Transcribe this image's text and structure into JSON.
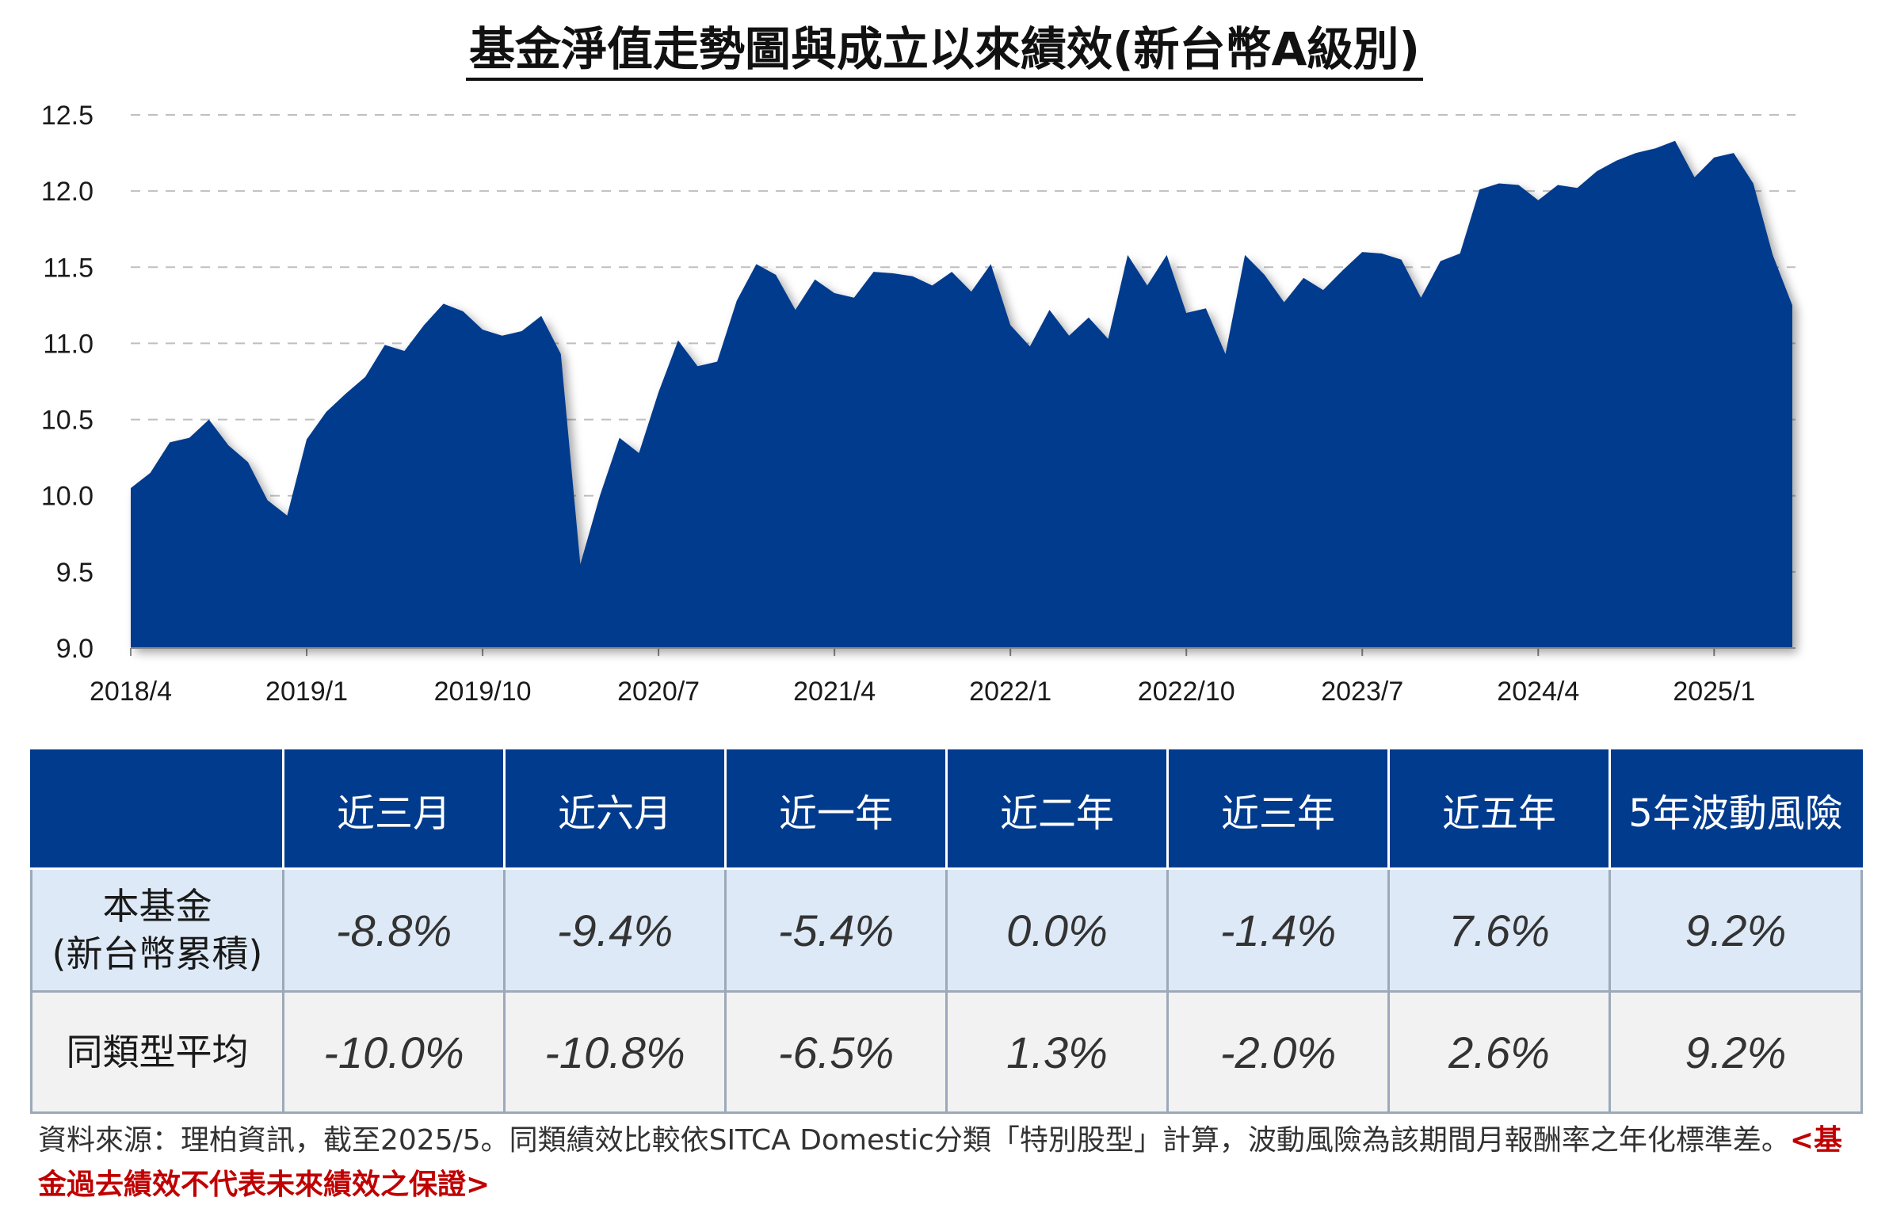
{
  "title": "基金淨值走勢圖與成立以來績效(新台幣A級別)",
  "colors": {
    "area": "#003b8e",
    "header": "#003b8e",
    "fund_row": "#dde9f6",
    "avg_row": "#f2f2f2",
    "warning": "#c00000"
  },
  "chart_data": {
    "type": "area",
    "title": "基金淨值走勢圖與成立以來績效(新台幣A級別)",
    "x_ticks": [
      "2018/4",
      "2019/1",
      "2019/10",
      "2020/7",
      "2021/4",
      "2022/1",
      "2022/10",
      "2023/7",
      "2024/4",
      "2025/1"
    ],
    "x_range": [
      "2018/4",
      "2025/5"
    ],
    "y_ticks": [
      "12.5",
      "12.0",
      "11.5",
      "11.0",
      "10.5",
      "10.0",
      "9.5",
      "9.0"
    ],
    "ylim": [
      9.0,
      12.5
    ],
    "grid": "horizontal dashed",
    "series": [
      {
        "values": [
          {
            "x": "2018-04",
            "y": 10.05
          },
          {
            "x": "2018-05",
            "y": 10.15
          },
          {
            "x": "2018-06",
            "y": 10.35
          },
          {
            "x": "2018-07",
            "y": 10.38
          },
          {
            "x": "2018-08",
            "y": 10.5
          },
          {
            "x": "2018-09",
            "y": 10.33
          },
          {
            "x": "2018-10",
            "y": 10.22
          },
          {
            "x": "2018-11",
            "y": 9.97
          },
          {
            "x": "2018-12",
            "y": 9.87
          },
          {
            "x": "2019-01",
            "y": 10.37
          },
          {
            "x": "2019-02",
            "y": 10.55
          },
          {
            "x": "2019-03",
            "y": 10.67
          },
          {
            "x": "2019-04",
            "y": 10.78
          },
          {
            "x": "2019-05",
            "y": 10.99
          },
          {
            "x": "2019-06",
            "y": 10.95
          },
          {
            "x": "2019-07",
            "y": 11.12
          },
          {
            "x": "2019-08",
            "y": 11.26
          },
          {
            "x": "2019-09",
            "y": 11.21
          },
          {
            "x": "2019-10",
            "y": 11.09
          },
          {
            "x": "2019-11",
            "y": 11.05
          },
          {
            "x": "2019-12",
            "y": 11.08
          },
          {
            "x": "2020-01",
            "y": 11.18
          },
          {
            "x": "2020-02",
            "y": 10.93
          },
          {
            "x": "2020-03",
            "y": 9.55
          },
          {
            "x": "2020-04",
            "y": 10.0
          },
          {
            "x": "2020-05",
            "y": 10.38
          },
          {
            "x": "2020-06",
            "y": 10.28
          },
          {
            "x": "2020-07",
            "y": 10.68
          },
          {
            "x": "2020-08",
            "y": 11.02
          },
          {
            "x": "2020-09",
            "y": 10.85
          },
          {
            "x": "2020-10",
            "y": 10.88
          },
          {
            "x": "2020-11",
            "y": 11.28
          },
          {
            "x": "2020-12",
            "y": 11.52
          },
          {
            "x": "2021-01",
            "y": 11.45
          },
          {
            "x": "2021-02",
            "y": 11.22
          },
          {
            "x": "2021-03",
            "y": 11.42
          },
          {
            "x": "2021-04",
            "y": 11.33
          },
          {
            "x": "2021-05",
            "y": 11.3
          },
          {
            "x": "2021-06",
            "y": 11.47
          },
          {
            "x": "2021-07",
            "y": 11.46
          },
          {
            "x": "2021-08",
            "y": 11.44
          },
          {
            "x": "2021-09",
            "y": 11.38
          },
          {
            "x": "2021-10",
            "y": 11.47
          },
          {
            "x": "2021-11",
            "y": 11.34
          },
          {
            "x": "2021-12",
            "y": 11.52
          },
          {
            "x": "2022-01",
            "y": 11.12
          },
          {
            "x": "2022-02",
            "y": 10.98
          },
          {
            "x": "2022-03",
            "y": 11.22
          },
          {
            "x": "2022-04",
            "y": 11.05
          },
          {
            "x": "2022-05",
            "y": 11.17
          },
          {
            "x": "2022-06",
            "y": 11.03
          },
          {
            "x": "2022-07",
            "y": 11.58
          },
          {
            "x": "2022-08",
            "y": 11.38
          },
          {
            "x": "2022-09",
            "y": 11.58
          },
          {
            "x": "2022-10",
            "y": 11.2
          },
          {
            "x": "2022-11",
            "y": 11.23
          },
          {
            "x": "2022-12",
            "y": 10.93
          },
          {
            "x": "2023-01",
            "y": 11.58
          },
          {
            "x": "2023-02",
            "y": 11.45
          },
          {
            "x": "2023-03",
            "y": 11.27
          },
          {
            "x": "2023-04",
            "y": 11.43
          },
          {
            "x": "2023-05",
            "y": 11.35
          },
          {
            "x": "2023-06",
            "y": 11.48
          },
          {
            "x": "2023-07",
            "y": 11.6
          },
          {
            "x": "2023-08",
            "y": 11.59
          },
          {
            "x": "2023-09",
            "y": 11.55
          },
          {
            "x": "2023-10",
            "y": 11.3
          },
          {
            "x": "2023-11",
            "y": 11.54
          },
          {
            "x": "2023-12",
            "y": 11.59
          },
          {
            "x": "2024-01",
            "y": 12.01
          },
          {
            "x": "2024-02",
            "y": 12.05
          },
          {
            "x": "2024-03",
            "y": 12.04
          },
          {
            "x": "2024-04",
            "y": 11.94
          },
          {
            "x": "2024-05",
            "y": 12.04
          },
          {
            "x": "2024-06",
            "y": 12.02
          },
          {
            "x": "2024-07",
            "y": 12.13
          },
          {
            "x": "2024-08",
            "y": 12.2
          },
          {
            "x": "2024-09",
            "y": 12.25
          },
          {
            "x": "2024-10",
            "y": 12.28
          },
          {
            "x": "2024-11",
            "y": 12.33
          },
          {
            "x": "2024-12",
            "y": 12.09
          },
          {
            "x": "2025-01",
            "y": 12.22
          },
          {
            "x": "2025-02",
            "y": 12.25
          },
          {
            "x": "2025-03",
            "y": 12.05
          },
          {
            "x": "2025-04",
            "y": 11.58
          },
          {
            "x": "2025-05",
            "y": 11.25
          }
        ]
      }
    ]
  },
  "table": {
    "headers": [
      "",
      "近三月",
      "近六月",
      "近一年",
      "近二年",
      "近三年",
      "近五年",
      "5年波動風險"
    ],
    "rows": [
      {
        "label_line1": "本基金",
        "label_line2": "(新台幣累積)",
        "values": [
          "-8.8%",
          "-9.4%",
          "-5.4%",
          "0.0%",
          "-1.4%",
          "7.6%",
          "9.2%"
        ]
      },
      {
        "label_line1": "同類型平均",
        "values": [
          "-10.0%",
          "-10.8%",
          "-6.5%",
          "1.3%",
          "-2.0%",
          "2.6%",
          "9.2%"
        ]
      }
    ]
  },
  "footnote": {
    "text": "資料來源：理柏資訊，截至2025/5。同類績效比較依SITCA Domestic分類「特別股型」計算，波動風險為該期間月報酬率之年化標準差。",
    "warning": "<基金過去績效不代表未來績效之保證>"
  }
}
